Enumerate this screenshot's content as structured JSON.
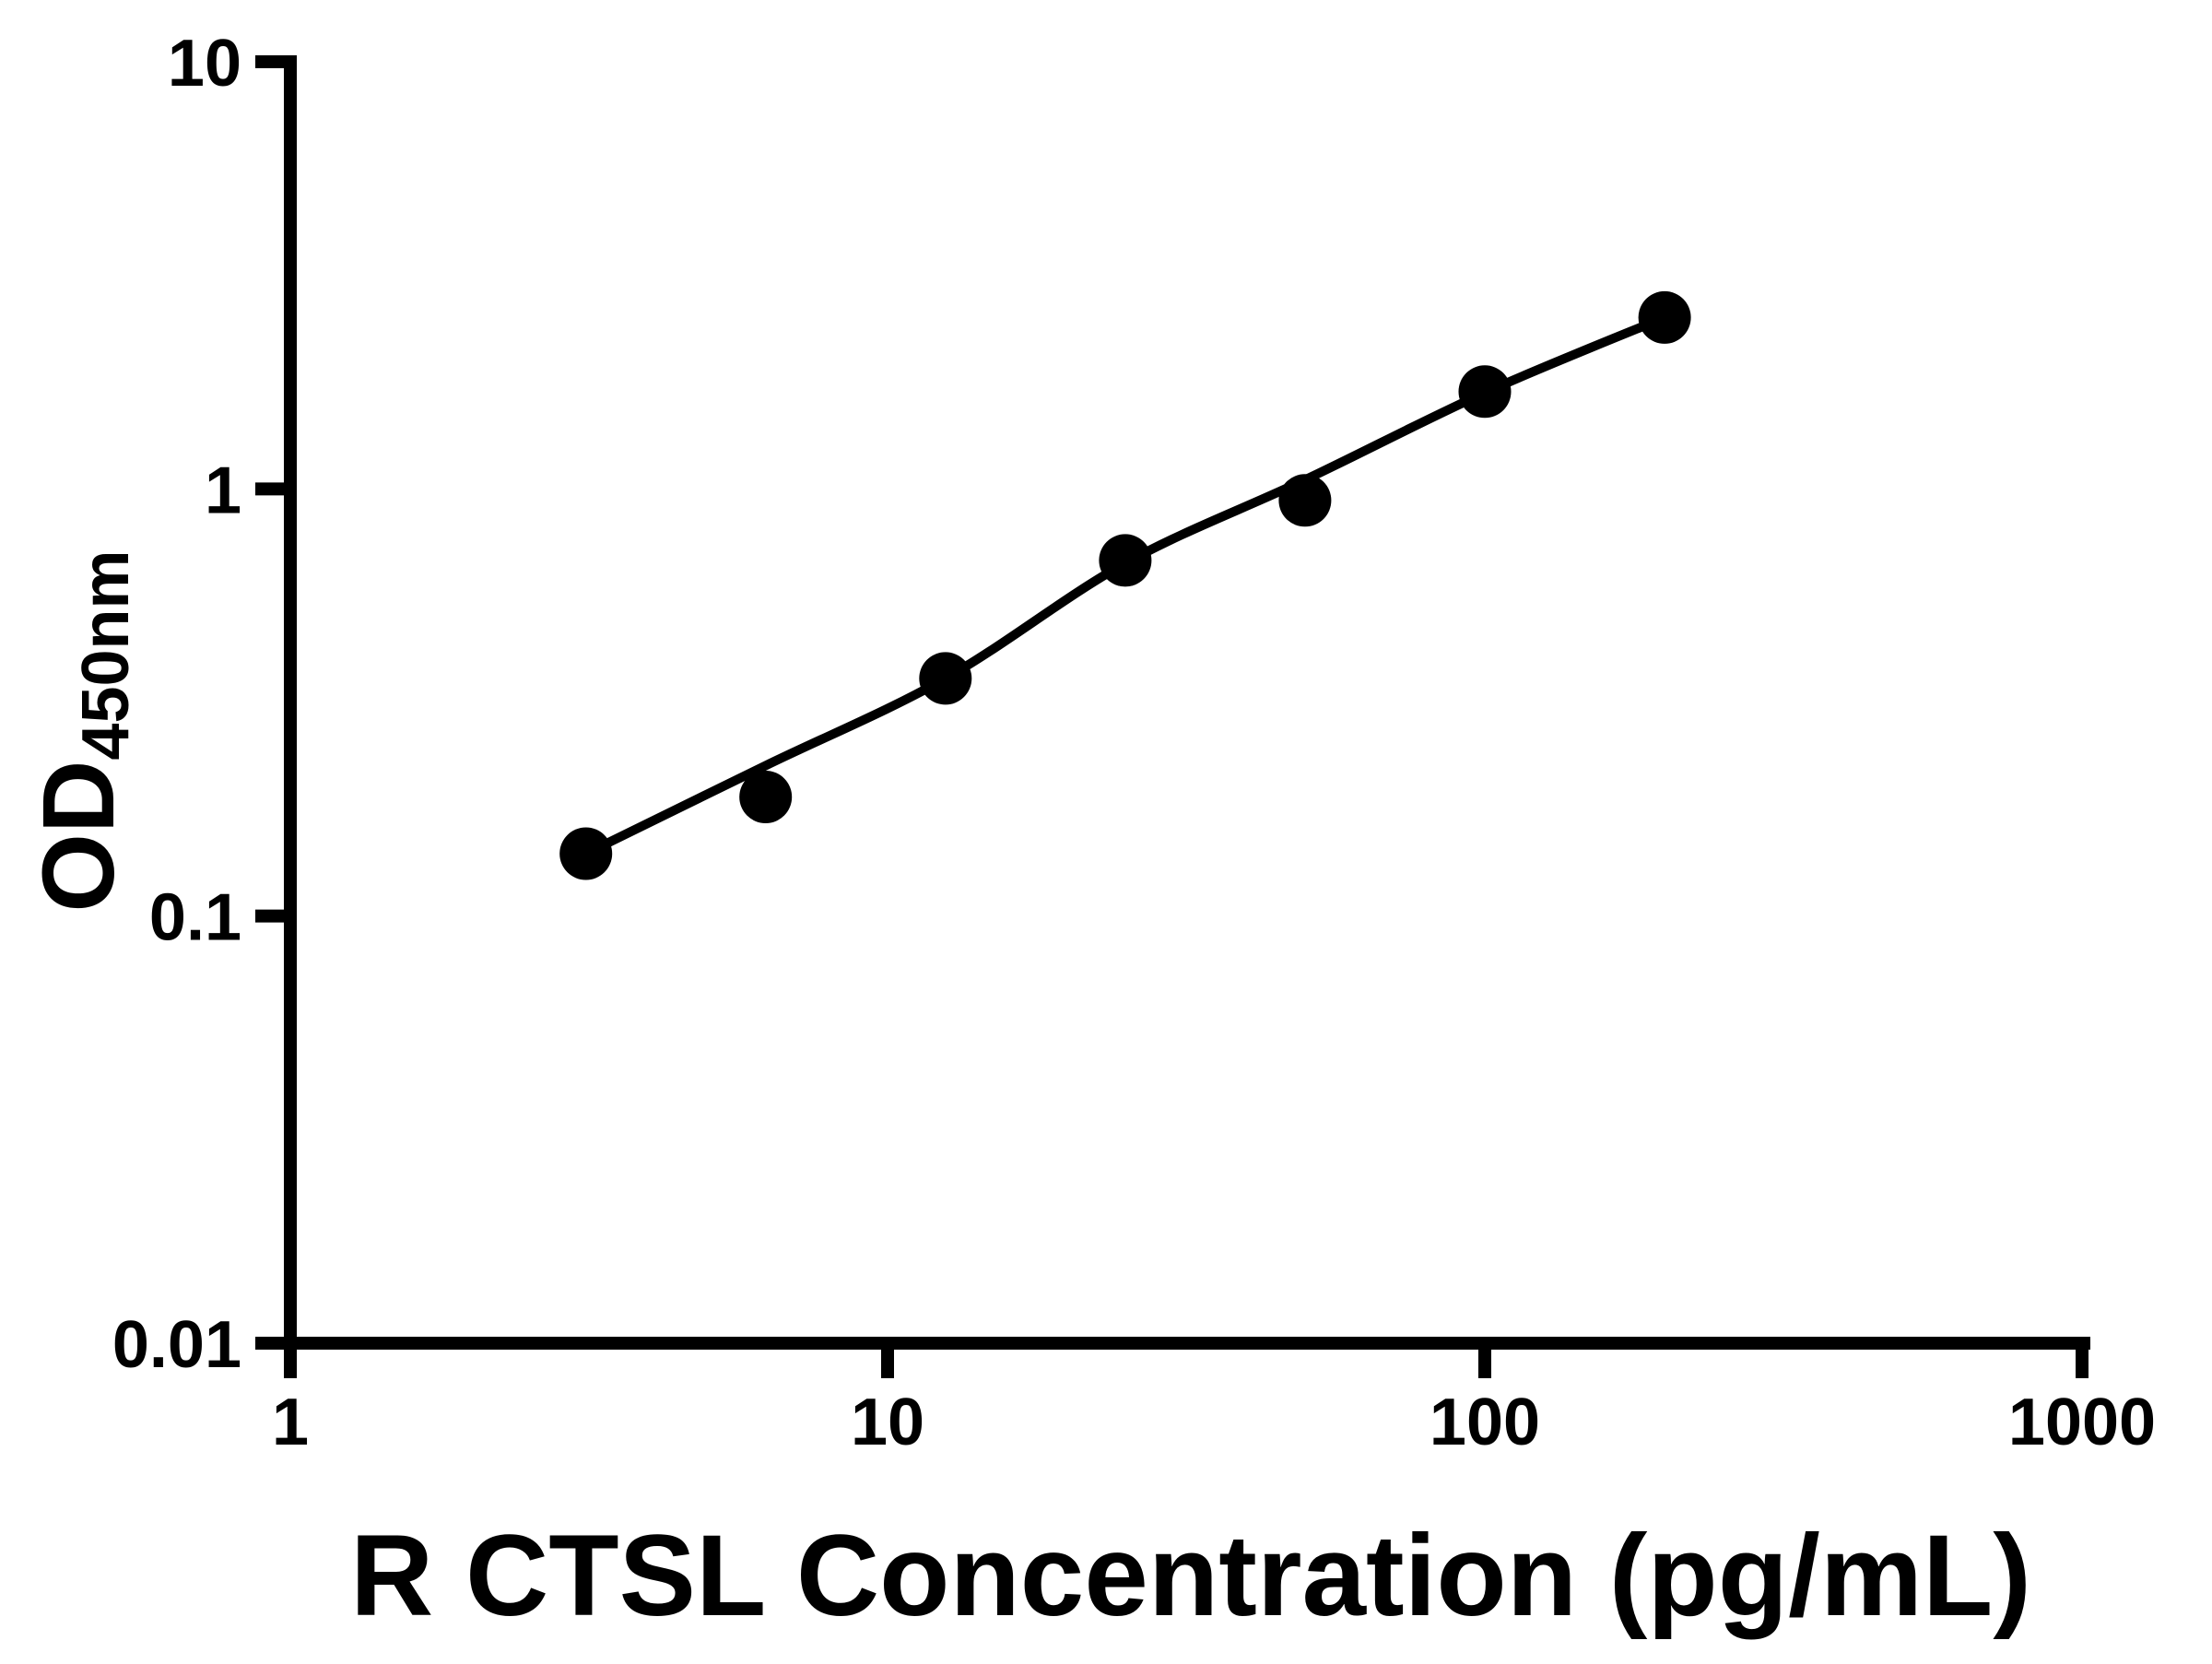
{
  "figure": {
    "background": "#ffffff",
    "foreground": "#000000"
  },
  "chart_data": {
    "type": "scatter",
    "title": "",
    "xlabel": "R CTSL Concentration (pg/mL)",
    "ylabel_main": "OD",
    "ylabel_sub": "450nm",
    "x_scale": "log",
    "y_scale": "log",
    "xlim": [
      1,
      1000
    ],
    "ylim": [
      0.01,
      10
    ],
    "grid": false,
    "legend": null,
    "x_ticks": [
      {
        "value": 1,
        "label": "1"
      },
      {
        "value": 10,
        "label": "10"
      },
      {
        "value": 100,
        "label": "100"
      },
      {
        "value": 1000,
        "label": "1000"
      }
    ],
    "y_ticks": [
      {
        "value": 10,
        "label": "10"
      },
      {
        "value": 1,
        "label": "1"
      },
      {
        "value": 0.1,
        "label": "0.1"
      },
      {
        "value": 0.01,
        "label": "0.01"
      }
    ],
    "series": [
      {
        "name": "standard-curve-points",
        "marker": "filled-circle",
        "color": "#000000",
        "points": [
          {
            "x": 3.125,
            "y": 0.14
          },
          {
            "x": 6.25,
            "y": 0.19
          },
          {
            "x": 12.5,
            "y": 0.36
          },
          {
            "x": 25,
            "y": 0.68
          },
          {
            "x": 50,
            "y": 0.94
          },
          {
            "x": 100,
            "y": 1.69
          },
          {
            "x": 200,
            "y": 2.52
          }
        ]
      }
    ],
    "fit_line": {
      "name": "four-parameter-logistic-fit",
      "color": "#000000",
      "points": [
        {
          "x": 3.125,
          "y": 0.14
        },
        {
          "x": 6.25,
          "y": 0.225
        },
        {
          "x": 12.5,
          "y": 0.36
        },
        {
          "x": 25,
          "y": 0.67
        },
        {
          "x": 50,
          "y": 1.05
        },
        {
          "x": 100,
          "y": 1.68
        },
        {
          "x": 200,
          "y": 2.52
        }
      ]
    }
  }
}
